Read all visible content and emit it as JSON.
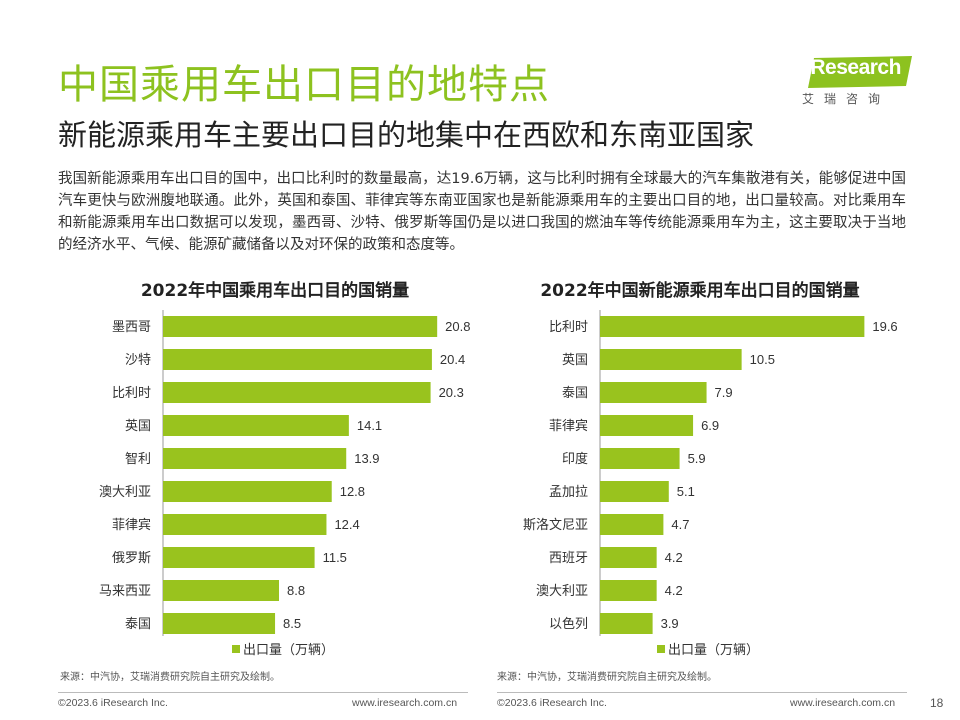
{
  "header": {
    "title": "中国乘用车出口目的地特点",
    "subtitle": "新能源乘用车主要出口目的地集中在西欧和东南亚国家",
    "body": "我国新能源乘用车出口目的国中，出口比利时的数量最高，达19.6万辆，这与比利时拥有全球最大的汽车集散港有关，能够促进中国汽车更快与欧洲腹地联通。此外，英国和泰国、菲律宾等东南亚国家也是新能源乘用车的主要出口目的地，出口量较高。对比乘用车和新能源乘用车出口数据可以发现，墨西哥、沙特、俄罗斯等国仍是以进口我国的燃油车等传统能源乘用车为主，这主要取决于当地的经济水平、气候、能源矿藏储备以及对环保的政策和态度等。"
  },
  "logo": {
    "name": "iResearch",
    "sub": "艾瑞咨询",
    "color": "#8dc21f"
  },
  "colors": {
    "accent": "#8dc21f",
    "bar": "#99c31e"
  },
  "chart_data": [
    {
      "type": "bar",
      "orientation": "horizontal",
      "title": "2022年中国乘用车出口目的国销量",
      "categories": [
        "墨西哥",
        "沙特",
        "比利时",
        "英国",
        "智利",
        "澳大利亚",
        "菲律宾",
        "俄罗斯",
        "马来西亚",
        "泰国"
      ],
      "series": [
        {
          "name": "出口量（万辆）",
          "values": [
            20.8,
            20.4,
            20.3,
            14.1,
            13.9,
            12.8,
            12.4,
            11.5,
            8.8,
            8.5
          ]
        }
      ],
      "max": 22,
      "legend": "bottom",
      "grid": false,
      "source": "来源：中汽协，艾瑞消费研究院自主研究及绘制。"
    },
    {
      "type": "bar",
      "orientation": "horizontal",
      "title": "2022年中国新能源乘用车出口目的国销量",
      "categories": [
        "比利时",
        "英国",
        "泰国",
        "菲律宾",
        "印度",
        "孟加拉",
        "斯洛文尼亚",
        "西班牙",
        "澳大利亚",
        "以色列"
      ],
      "series": [
        {
          "name": "出口量（万辆）",
          "values": [
            19.6,
            10.5,
            7.9,
            6.9,
            5.9,
            5.1,
            4.7,
            4.2,
            4.2,
            3.9
          ]
        }
      ],
      "max": 21.5,
      "legend": "bottom",
      "grid": false,
      "source": "来源：中汽协，艾瑞消费研究院自主研究及绘制。"
    }
  ],
  "footer": {
    "copyright": "©2023.6 iResearch Inc.",
    "url": "www.iresearch.com.cn",
    "page": "18"
  }
}
